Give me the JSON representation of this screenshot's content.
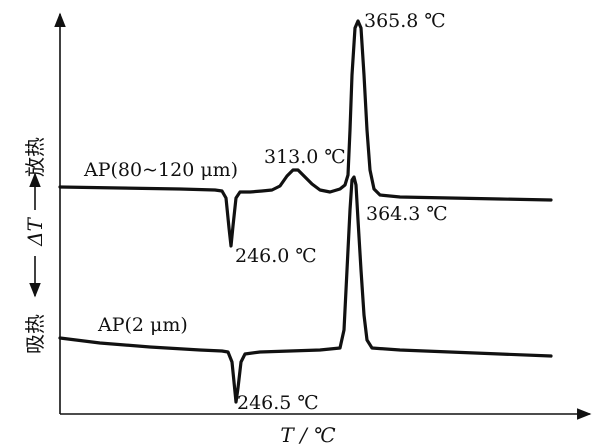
{
  "chart_data": {
    "type": "line",
    "xlabel": "T / ℃",
    "ylabel": "ΔT",
    "y_direction_labels": {
      "up": "放热",
      "down": "吸热"
    },
    "series": [
      {
        "name": "AP(80~120 μm)",
        "peaks": [
          {
            "type": "endotherm",
            "label": "246.0 ℃",
            "x": 246.0
          },
          {
            "type": "exotherm",
            "label": "313.0 ℃",
            "x": 313.0
          },
          {
            "type": "exotherm",
            "label": "365.8 ℃",
            "x": 365.8
          }
        ]
      },
      {
        "name": "AP(2 μm)",
        "peaks": [
          {
            "type": "endotherm",
            "label": "246.5 ℃",
            "x": 246.5
          },
          {
            "type": "exotherm",
            "label": "364.3 ℃",
            "x": 364.3
          }
        ]
      }
    ]
  }
}
